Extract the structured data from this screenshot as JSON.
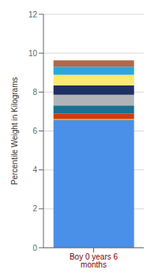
{
  "chart_data": {
    "type": "bar",
    "stacked": true,
    "categories": [
      "Boy 0 years 6 months"
    ],
    "series": [
      {
        "color": "#4a8fe8",
        "values": [
          6.55
        ]
      },
      {
        "color": "#d4a830",
        "values": [
          0.08
        ]
      },
      {
        "color": "#d43810",
        "values": [
          0.28
        ]
      },
      {
        "color": "#1a7090",
        "values": [
          0.4
        ]
      },
      {
        "color": "#b0b4b8",
        "values": [
          0.55
        ]
      },
      {
        "color": "#1e3060",
        "values": [
          0.48
        ]
      },
      {
        "color": "#fde870",
        "values": [
          0.55
        ]
      },
      {
        "color": "#28a8dc",
        "values": [
          0.42
        ]
      },
      {
        "color": "#b06848",
        "values": [
          0.32
        ]
      }
    ],
    "ylabel": "Percentile Weight in Kilograms",
    "ylim": [
      0,
      12
    ],
    "yticks": [
      0,
      2,
      4,
      6,
      8,
      10,
      12
    ],
    "grid": true
  }
}
